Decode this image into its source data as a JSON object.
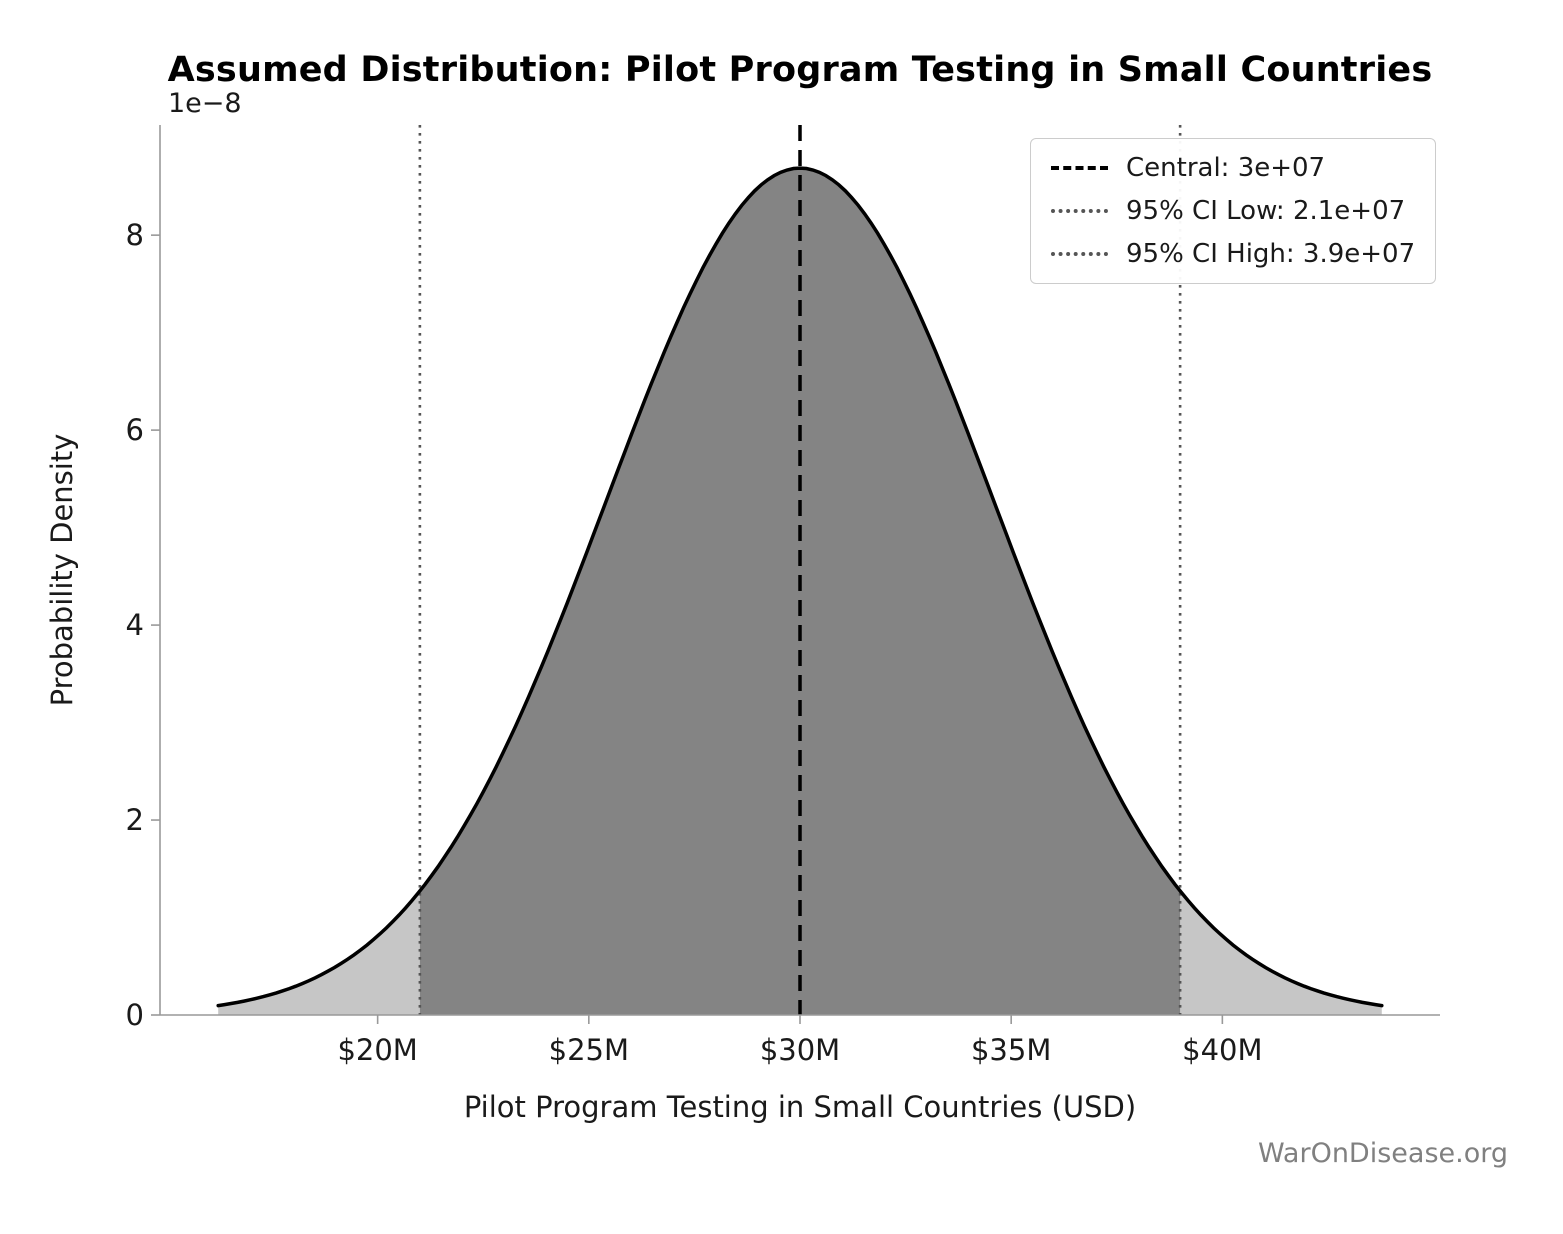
{
  "watermark": "WarOnDisease.org",
  "chart_data": {
    "type": "area",
    "distribution": "normal-pdf",
    "title": "Assumed Distribution: Pilot Program Testing in Small Countries",
    "xlabel": "Pilot Program Testing in Small Countries (USD)",
    "ylabel": "Probability Density",
    "y_offset_label": "1e−8",
    "mean": 30000000,
    "ci_low": 21000000,
    "ci_high": 39000000,
    "sigma": 4591837,
    "peak_density": 8.69e-08,
    "x_min": 16224490,
    "x_max": 43775510,
    "xlim": [
      14846939,
      45153061
    ],
    "ylim": [
      0,
      9.13e-08
    ],
    "y_scale": 1e-08,
    "x_ticks": [
      20000000,
      25000000,
      30000000,
      35000000,
      40000000
    ],
    "x_tick_labels": [
      "$20M",
      "$25M",
      "$30M",
      "$35M",
      "$40M"
    ],
    "y_ticks": [
      0,
      2,
      4,
      6,
      8
    ],
    "y_tick_labels": [
      "0",
      "2",
      "4",
      "6",
      "8"
    ],
    "grid": false,
    "legend_position": "upper right",
    "legend": [
      {
        "label": "Central: 3e+07",
        "style": "dashed",
        "color": "#000000"
      },
      {
        "label": "95% CI Low: 2.1e+07",
        "style": "dotted",
        "color": "#555555"
      },
      {
        "label": "95% CI High: 3.9e+07",
        "style": "dotted",
        "color": "#555555"
      }
    ],
    "colors": {
      "curve": "#000000",
      "ci_fill": "#848484",
      "tail_fill": "#c6c6c6",
      "central_line": "#000000",
      "ci_line": "#555555"
    }
  }
}
